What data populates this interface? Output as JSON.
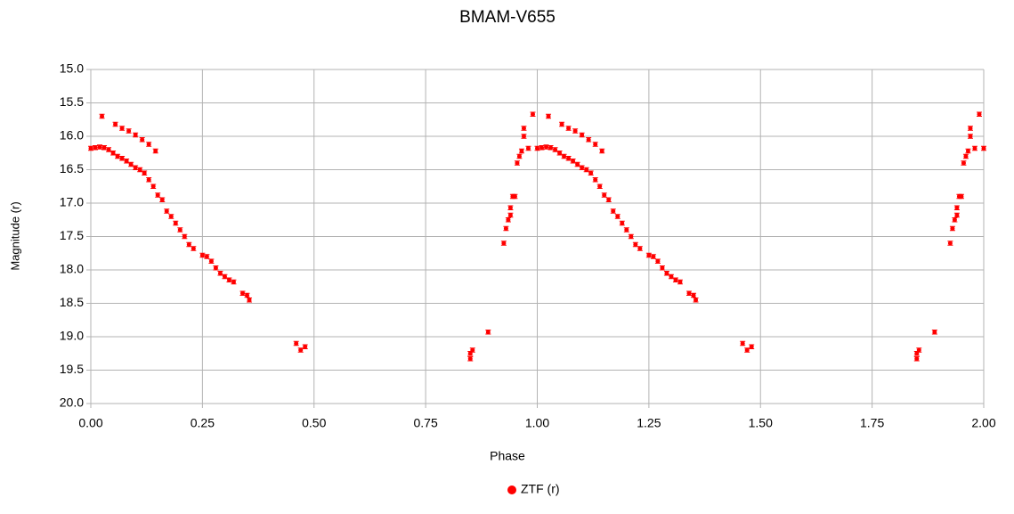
{
  "chart_data": {
    "type": "scatter",
    "title": "BMAM-V655",
    "x_label": "Phase",
    "y_label": "Magnitude (r)",
    "xlim": [
      0,
      2
    ],
    "xticks": [
      {
        "value": 0,
        "label": "0.00"
      },
      {
        "value": 0.25,
        "label": "0.25"
      },
      {
        "value": 0.5,
        "label": "0.50"
      },
      {
        "value": 0.75,
        "label": "0.75"
      },
      {
        "value": 1,
        "label": "1.00"
      },
      {
        "value": 1.25,
        "label": "1.25"
      },
      {
        "value": 1.5,
        "label": "1.50"
      },
      {
        "value": 1.75,
        "label": "1.75"
      },
      {
        "value": 2,
        "label": "2.00"
      }
    ],
    "ylim": [
      15,
      20
    ],
    "y_inverted": true,
    "yticks": [
      {
        "value": 15,
        "label": "15.0"
      },
      15.5,
      {
        "value": 16,
        "label": "16.0"
      },
      16.5,
      {
        "value": 17,
        "label": "17.0"
      },
      17.5,
      {
        "value": 18,
        "label": "18.0"
      },
      18.5,
      {
        "value": 19,
        "label": "19.0"
      },
      19.5,
      {
        "value": 20,
        "label": "20.0"
      }
    ],
    "grid": true,
    "legend": "bottom",
    "series": [
      {
        "name": "ZTF (r)",
        "color": "#ff0000",
        "error": 0.03,
        "x": [
          0,
          0.01,
          0.02,
          0.03,
          0.04,
          0.05,
          0.06,
          0.07,
          0.08,
          0.09,
          0.1,
          0.11,
          0.12,
          0.13,
          0.14,
          0.15,
          0.16,
          0.17,
          0.18,
          0.19,
          0.2,
          0.21,
          0.22,
          0.23,
          0.25,
          0.26,
          0.27,
          0.28,
          0.29,
          0.3,
          0.31,
          0.32,
          0.34,
          0.35,
          0.355,
          0.025,
          0.055,
          0.07,
          0.085,
          0.1,
          0.115,
          0.13,
          0.145,
          0.46,
          0.47,
          0.48,
          0.85,
          0.85,
          0.855,
          0.89,
          0.925,
          0.93,
          0.935,
          0.94,
          0.94,
          0.945,
          0.95,
          0.955,
          0.96,
          0.965,
          0.97,
          0.97,
          0.98,
          0.99,
          1,
          1.01,
          1.02,
          1.03,
          1.04,
          1.05,
          1.06,
          1.07,
          1.08,
          1.09,
          1.1,
          1.11,
          1.12,
          1.13,
          1.14,
          1.15,
          1.16,
          1.17,
          1.18,
          1.19,
          1.2,
          1.21,
          1.22,
          1.23,
          1.25,
          1.26,
          1.27,
          1.28,
          1.29,
          1.3,
          1.31,
          1.32,
          1.34,
          1.35,
          1.355,
          1.025,
          1.055,
          1.07,
          1.085,
          1.1,
          1.115,
          1.13,
          1.145,
          1.46,
          1.47,
          1.48,
          1.85,
          1.85,
          1.855,
          1.89,
          1.925,
          1.93,
          1.935,
          1.94,
          1.94,
          1.945,
          1.95,
          1.955,
          1.96,
          1.965,
          1.97,
          1.97,
          1.98,
          1.99,
          2
        ],
        "values": [
          16.18,
          16.17,
          16.16,
          16.17,
          16.2,
          16.25,
          16.3,
          16.33,
          16.37,
          16.42,
          16.47,
          16.5,
          16.55,
          16.65,
          16.75,
          16.88,
          16.95,
          17.12,
          17.2,
          17.3,
          17.4,
          17.5,
          17.62,
          17.68,
          17.78,
          17.8,
          17.87,
          17.97,
          18.05,
          18.1,
          18.15,
          18.18,
          18.35,
          18.38,
          18.45,
          15.7,
          15.82,
          15.88,
          15.92,
          15.98,
          16.05,
          16.12,
          16.22,
          19.1,
          19.2,
          19.15,
          19.25,
          19.33,
          19.2,
          18.93,
          17.6,
          17.38,
          17.25,
          17.07,
          17.18,
          16.9,
          16.9,
          16.4,
          16.3,
          16.22,
          16.0,
          15.88,
          16.18,
          15.67,
          16.18,
          16.17,
          16.16,
          16.17,
          16.2,
          16.25,
          16.3,
          16.33,
          16.37,
          16.42,
          16.47,
          16.5,
          16.55,
          16.65,
          16.75,
          16.88,
          16.95,
          17.12,
          17.2,
          17.3,
          17.4,
          17.5,
          17.62,
          17.68,
          17.78,
          17.8,
          17.87,
          17.97,
          18.05,
          18.1,
          18.15,
          18.18,
          18.35,
          18.38,
          18.45,
          15.7,
          15.82,
          15.88,
          15.92,
          15.98,
          16.05,
          16.12,
          16.22,
          19.1,
          19.2,
          19.15,
          19.25,
          19.33,
          19.2,
          18.93,
          17.6,
          17.38,
          17.25,
          17.07,
          17.18,
          16.9,
          16.9,
          16.4,
          16.3,
          16.22,
          16.0,
          15.88,
          16.18,
          15.67,
          16.18
        ]
      }
    ]
  }
}
